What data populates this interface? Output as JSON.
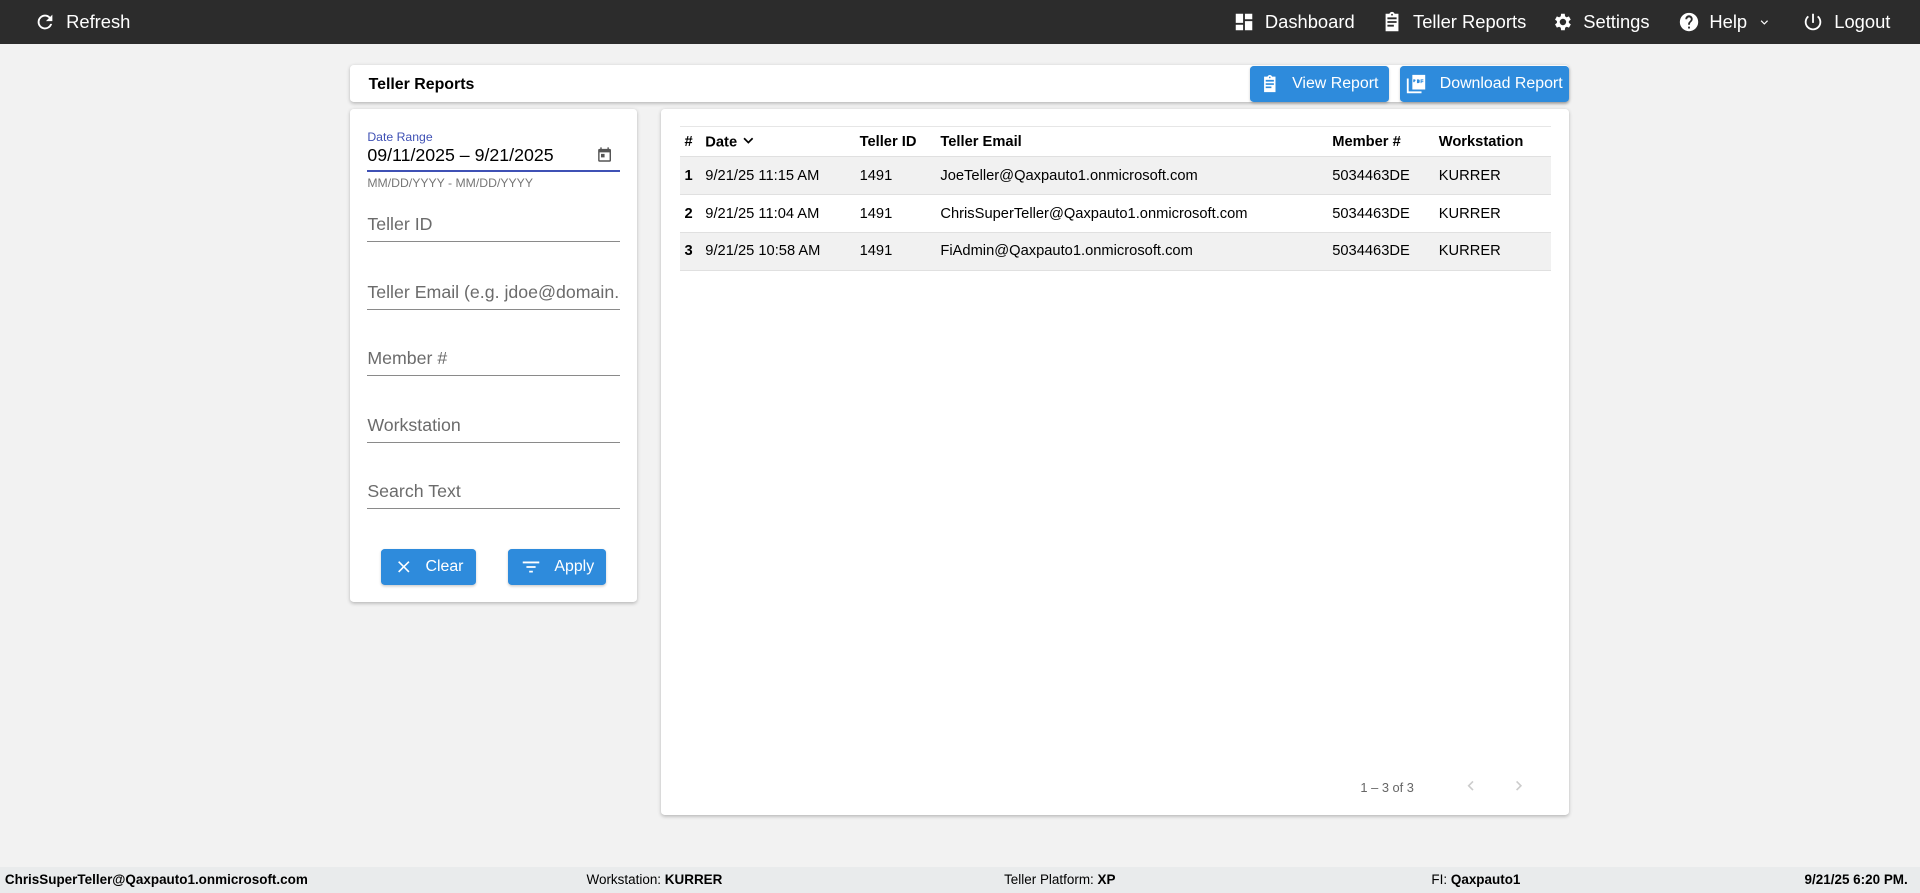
{
  "topbar": {
    "refresh": "Refresh",
    "dashboard": "Dashboard",
    "teller_reports": "Teller Reports",
    "settings": "Settings",
    "help": "Help",
    "logout": "Logout"
  },
  "header": {
    "title": "Teller Reports",
    "view_report": "View Report",
    "download_report": "Download Report"
  },
  "filters": {
    "date_range_label": "Date Range",
    "date_range_value": "09/11/2025 – 9/21/2025",
    "date_range_hint": "MM/DD/YYYY - MM/DD/YYYY",
    "teller_id_placeholder": "Teller ID",
    "teller_email_placeholder": "Teller Email (e.g. jdoe@domain.com)",
    "member_placeholder": "Member #",
    "workstation_placeholder": "Workstation",
    "search_placeholder": "Search Text",
    "clear": "Clear",
    "apply": "Apply"
  },
  "table": {
    "headers": [
      "#",
      "Date",
      "Teller ID",
      "Teller Email",
      "Member #",
      "Workstation"
    ],
    "sort_column": "Date",
    "sort_direction": "descending",
    "rows": [
      [
        "1",
        "9/21/25 11:15 AM",
        "1491",
        "JoeTeller@Qaxpauto1.onmicrosoft.com",
        "5034463DE",
        "KURRER"
      ],
      [
        "2",
        "9/21/25 11:04 AM",
        "1491",
        "ChrisSuperTeller@Qaxpauto1.onmicrosoft.com",
        "5034463DE",
        "KURRER"
      ],
      [
        "3",
        "9/21/25 10:58 AM",
        "1491",
        "FiAdmin@Qaxpauto1.onmicrosoft.com",
        "5034463DE",
        "KURRER"
      ]
    ],
    "pagination": "1 – 3 of 3"
  },
  "footer": {
    "user": "ChrisSuperTeller@Qaxpauto1.onmicrosoft.com",
    "workstation_label": "Workstation:",
    "workstation": "KURRER",
    "platform_label": "Teller Platform:",
    "platform": "XP",
    "fi_label": "FI:",
    "fi": "Qaxpauto1",
    "datetime": "9/21/25 6:20 PM."
  },
  "colors": {
    "topbar": "#2c2c2c",
    "primary": "#2e8bdc",
    "focus_underline": "#3f51b5"
  }
}
